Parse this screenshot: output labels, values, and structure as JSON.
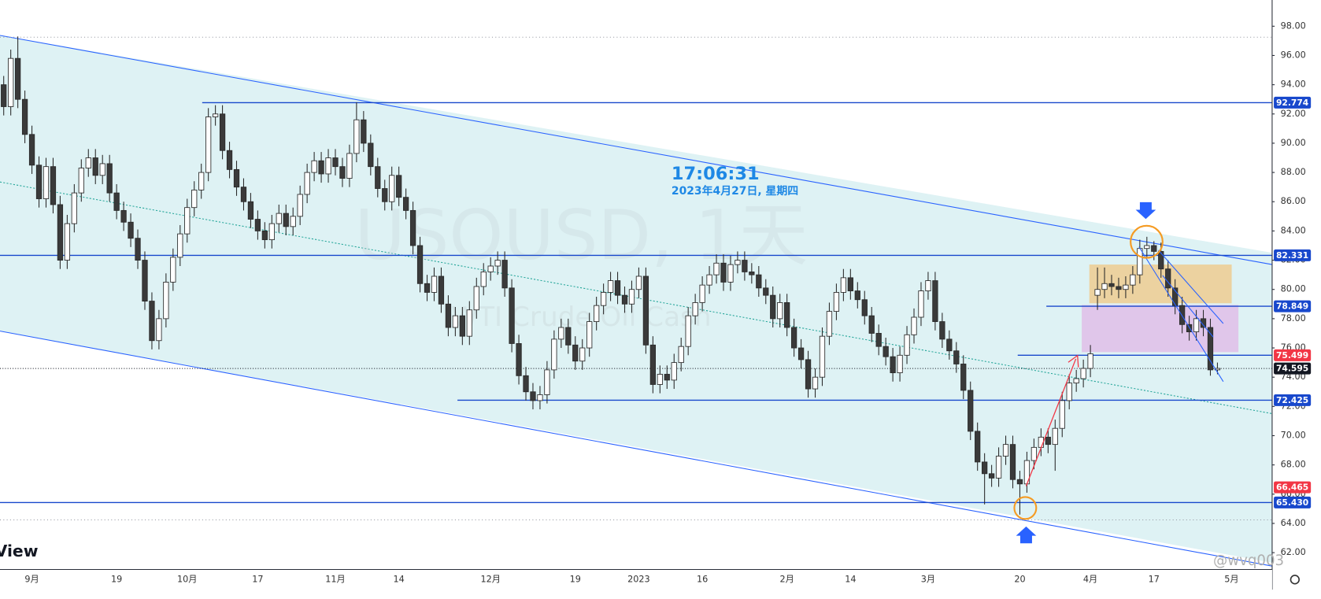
{
  "chart_data": {
    "type": "candlestick",
    "title": "USOUSD, 1天",
    "subtitle": "WTI Crude Oil Cash",
    "clock_time": "17:06:31",
    "clock_date": "2023年4月27日, 星期四",
    "branding": "View",
    "watermark": "@wvq003",
    "up_color": "#ffffff",
    "down_color": "#3a3a3a",
    "outline_color": "#2a2a2a",
    "categories": [
      null,
      null,
      null,
      null,
      "9月",
      null,
      null,
      null,
      null,
      null,
      null,
      null,
      null,
      null,
      null,
      null,
      "19",
      null,
      null,
      null,
      null,
      null,
      null,
      null,
      null,
      null,
      "10月",
      null,
      null,
      null,
      null,
      null,
      null,
      null,
      null,
      null,
      "17",
      null,
      null,
      null,
      null,
      null,
      null,
      null,
      null,
      null,
      null,
      "11月",
      null,
      null,
      null,
      null,
      null,
      null,
      null,
      null,
      "14",
      null,
      null,
      null,
      null,
      null,
      null,
      null,
      null,
      null,
      null,
      null,
      null,
      "12月",
      null,
      null,
      null,
      null,
      null,
      null,
      null,
      null,
      null,
      null,
      null,
      "19",
      null,
      null,
      null,
      null,
      null,
      null,
      null,
      null,
      "2023",
      null,
      null,
      null,
      null,
      null,
      null,
      null,
      null,
      "16",
      null,
      null,
      null,
      null,
      null,
      null,
      null,
      null,
      null,
      null,
      null,
      "2月",
      null,
      null,
      null,
      null,
      null,
      null,
      null,
      null,
      "14",
      null,
      null,
      null,
      null,
      null,
      null,
      null,
      null,
      null,
      null,
      "3月",
      null,
      null,
      null,
      null,
      null,
      null,
      null,
      null,
      null,
      null,
      null,
      null,
      "20",
      null,
      null,
      null,
      null,
      null,
      null,
      null,
      null,
      null,
      "4月",
      null,
      null,
      null,
      null,
      null,
      null,
      null,
      null,
      "17",
      null,
      null,
      null,
      null,
      null,
      null,
      null,
      null,
      null,
      null,
      "5月"
    ],
    "open": [
      94.0,
      92.5,
      95.8,
      93.0,
      90.6,
      88.5,
      86.2,
      88.4,
      85.8,
      82.0,
      84.5,
      86.6,
      88.3,
      89.0,
      87.8,
      88.6,
      86.6,
      85.4,
      84.6,
      83.5,
      82.0,
      79.2,
      76.5,
      78.0,
      80.5,
      82.2,
      83.8,
      85.6,
      86.8,
      88.0,
      91.8,
      92.0,
      89.5,
      88.2,
      87.0,
      86.0,
      84.8,
      84.0,
      83.4,
      84.5,
      85.2,
      84.3,
      85.0,
      86.5,
      88.0,
      88.8,
      87.9,
      89.0,
      88.4,
      87.6,
      89.3,
      91.6,
      90.0,
      88.4,
      86.9,
      86.0,
      87.8,
      86.3,
      85.4,
      83.0,
      80.4,
      79.8,
      80.9,
      79.0,
      77.4,
      78.2,
      76.8,
      78.6,
      80.2,
      81.2,
      81.6,
      82.0,
      80.1,
      76.3,
      74.1,
      73.0,
      72.4,
      72.8,
      74.5,
      76.6,
      77.4,
      76.2,
      75.1,
      76.0,
      77.8,
      78.9,
      79.8,
      80.6,
      79.6,
      79.0,
      80.0,
      80.9,
      76.2,
      73.5,
      74.2,
      73.8,
      75.0,
      76.1,
      78.2,
      79.1,
      80.3,
      81.0,
      81.8,
      80.5,
      81.7,
      82.0,
      81.2,
      81.0,
      80.1,
      79.6,
      78.0,
      79.1,
      77.4,
      76.0,
      75.2,
      73.2,
      74.0,
      76.8,
      78.5,
      79.8,
      80.8,
      79.9,
      79.3,
      78.2,
      77.0,
      76.1,
      75.4,
      74.3,
      75.5,
      76.9,
      78.1,
      79.9,
      80.6,
      77.8,
      76.6,
      75.8,
      74.9,
      73.1,
      70.3,
      68.2,
      67.4,
      67.1,
      68.6,
      69.4,
      67.0,
      66.7,
      68.3,
      69.2,
      69.9,
      69.4,
      70.5,
      72.4,
      73.6,
      73.9,
      74.6,
      79.6,
      80.0,
      80.4,
      80.2,
      80.0,
      80.3,
      81.0,
      82.8,
      83.0,
      82.6,
      81.4,
      80.1,
      78.9,
      77.6,
      77.1,
      78.0,
      77.4,
      74.5,
      null,
      null
    ],
    "high": [
      94.6,
      96.4,
      97.3,
      93.6,
      91.2,
      89.1,
      89.0,
      89.0,
      86.4,
      85.1,
      87.2,
      88.9,
      89.6,
      89.6,
      89.2,
      89.2,
      87.2,
      86.0,
      85.2,
      84.1,
      82.6,
      79.8,
      78.6,
      81.1,
      82.8,
      84.4,
      86.2,
      87.4,
      88.6,
      92.4,
      92.6,
      92.6,
      90.1,
      88.8,
      87.6,
      86.6,
      85.4,
      84.6,
      85.1,
      85.8,
      85.8,
      85.6,
      87.1,
      88.6,
      89.4,
      89.4,
      89.6,
      89.6,
      89.0,
      89.9,
      92.8,
      92.2,
      90.6,
      89.0,
      87.5,
      88.4,
      88.4,
      86.9,
      86.0,
      83.6,
      81.0,
      81.5,
      81.5,
      79.6,
      78.8,
      78.8,
      79.2,
      80.8,
      81.8,
      82.2,
      82.6,
      82.6,
      80.7,
      76.9,
      74.7,
      73.6,
      73.4,
      75.1,
      77.2,
      78.0,
      78.0,
      76.8,
      76.6,
      78.4,
      79.5,
      80.4,
      81.2,
      81.2,
      80.2,
      80.6,
      81.5,
      81.5,
      76.8,
      74.8,
      74.8,
      75.6,
      76.7,
      78.8,
      79.7,
      80.9,
      81.6,
      82.4,
      82.4,
      82.3,
      82.6,
      82.6,
      81.8,
      81.6,
      80.7,
      80.2,
      79.7,
      79.7,
      78.0,
      76.6,
      75.8,
      74.6,
      77.4,
      79.1,
      80.4,
      81.4,
      81.4,
      80.5,
      79.9,
      78.8,
      77.6,
      76.7,
      76.0,
      76.1,
      77.5,
      78.7,
      80.5,
      81.2,
      81.2,
      78.4,
      77.2,
      76.4,
      75.5,
      73.7,
      70.9,
      68.8,
      68.0,
      69.2,
      70.0,
      70.0,
      67.6,
      68.9,
      69.8,
      70.5,
      70.5,
      71.1,
      73.0,
      74.2,
      74.5,
      75.2,
      76.2,
      81.5,
      81.5,
      81.0,
      80.8,
      80.9,
      81.6,
      83.4,
      83.6,
      83.3,
      83.2,
      82.0,
      80.7,
      79.5,
      78.2,
      78.6,
      78.6,
      78.0,
      75.0,
      null,
      null
    ],
    "low": [
      91.9,
      91.9,
      92.4,
      90.0,
      87.9,
      85.6,
      85.6,
      85.2,
      81.4,
      81.4,
      83.9,
      86.0,
      87.7,
      87.2,
      87.2,
      86.0,
      84.8,
      84.0,
      82.9,
      81.4,
      78.6,
      75.9,
      75.9,
      77.4,
      79.9,
      81.6,
      83.2,
      85.0,
      86.2,
      87.4,
      91.2,
      88.9,
      87.6,
      86.4,
      85.4,
      84.2,
      83.4,
      82.8,
      82.8,
      83.9,
      83.7,
      83.7,
      84.4,
      85.9,
      87.4,
      87.3,
      87.3,
      87.8,
      87.0,
      87.0,
      88.7,
      89.4,
      87.8,
      86.3,
      85.4,
      85.4,
      85.7,
      84.8,
      82.4,
      79.8,
      79.2,
      79.2,
      78.4,
      76.8,
      76.8,
      76.2,
      76.2,
      78.0,
      79.6,
      80.6,
      81.0,
      79.5,
      75.7,
      73.5,
      72.4,
      71.8,
      71.8,
      72.2,
      73.9,
      76.0,
      75.6,
      74.5,
      74.5,
      75.4,
      77.2,
      78.3,
      79.2,
      79.0,
      78.4,
      78.4,
      79.4,
      75.6,
      72.9,
      72.9,
      73.2,
      73.2,
      74.4,
      75.5,
      77.6,
      78.5,
      79.7,
      80.4,
      79.9,
      79.9,
      81.1,
      80.6,
      80.4,
      79.5,
      79.0,
      77.4,
      77.4,
      76.8,
      75.4,
      74.6,
      72.6,
      72.6,
      73.4,
      76.2,
      77.9,
      79.2,
      79.3,
      78.7,
      77.6,
      76.4,
      75.5,
      74.8,
      73.7,
      73.7,
      74.9,
      76.3,
      77.5,
      79.3,
      77.2,
      76.0,
      75.2,
      74.3,
      72.5,
      69.7,
      67.6,
      65.3,
      66.5,
      66.5,
      68.0,
      66.4,
      64.6,
      66.1,
      67.7,
      68.6,
      68.8,
      67.6,
      69.9,
      71.8,
      73.0,
      73.3,
      74.0,
      78.6,
      79.4,
      79.6,
      79.4,
      79.4,
      79.7,
      80.4,
      82.2,
      82.0,
      80.8,
      79.5,
      78.3,
      77.0,
      76.5,
      76.5,
      76.8,
      74.1,
      74.2,
      null,
      null
    ],
    "close": [
      92.5,
      95.8,
      93.0,
      90.6,
      88.5,
      86.2,
      88.4,
      85.8,
      82.0,
      84.5,
      86.6,
      88.3,
      89.0,
      87.8,
      88.6,
      86.6,
      85.4,
      84.6,
      83.5,
      82.0,
      79.2,
      76.5,
      78.0,
      80.5,
      82.2,
      83.8,
      85.6,
      86.8,
      88.0,
      91.8,
      92.0,
      89.5,
      88.2,
      87.0,
      86.0,
      84.8,
      84.0,
      83.4,
      84.5,
      85.2,
      84.3,
      85.0,
      86.5,
      88.0,
      88.8,
      87.9,
      89.0,
      88.4,
      87.6,
      89.3,
      91.6,
      90.0,
      88.4,
      86.9,
      86.0,
      87.8,
      86.3,
      85.4,
      83.0,
      80.4,
      79.8,
      80.9,
      79.0,
      77.4,
      78.2,
      76.8,
      78.6,
      80.2,
      81.2,
      81.6,
      82.0,
      80.1,
      76.3,
      74.1,
      73.0,
      72.4,
      72.8,
      74.5,
      76.6,
      77.4,
      76.2,
      75.1,
      76.0,
      77.8,
      78.9,
      79.8,
      80.6,
      79.6,
      79.0,
      80.0,
      80.9,
      76.2,
      73.5,
      74.2,
      73.8,
      75.0,
      76.1,
      78.2,
      79.1,
      80.3,
      81.0,
      81.8,
      80.5,
      81.7,
      82.0,
      81.2,
      81.0,
      80.1,
      79.6,
      78.0,
      79.1,
      77.4,
      76.0,
      75.2,
      73.2,
      74.0,
      76.8,
      78.5,
      79.8,
      80.8,
      79.9,
      79.3,
      78.2,
      77.0,
      76.1,
      75.4,
      74.3,
      75.5,
      76.9,
      78.1,
      79.9,
      80.6,
      77.8,
      76.6,
      75.8,
      74.9,
      73.1,
      70.3,
      68.2,
      67.4,
      67.1,
      68.6,
      69.4,
      67.0,
      66.7,
      68.3,
      69.2,
      69.9,
      69.4,
      70.5,
      72.4,
      73.6,
      73.9,
      74.6,
      75.6,
      80.0,
      80.4,
      80.2,
      80.0,
      80.3,
      81.0,
      82.8,
      83.0,
      82.6,
      81.4,
      80.1,
      78.9,
      77.6,
      77.1,
      78.0,
      77.4,
      74.5,
      74.6,
      null,
      null
    ],
    "ylim": [
      60.85,
      99.79
    ],
    "yticks": [
      {
        "value": 62,
        "label": "62.00"
      },
      {
        "value": 64,
        "label": "64.00"
      },
      {
        "value": 66,
        "label": "66.00"
      },
      {
        "value": 68,
        "label": "68.00"
      },
      {
        "value": 70,
        "label": "70.00"
      },
      {
        "value": 72,
        "label": "72.00"
      },
      {
        "value": 74,
        "label": "74.00"
      },
      {
        "value": 76,
        "label": "76.00"
      },
      {
        "value": 78,
        "label": "78.00"
      },
      {
        "value": 80,
        "label": "80.00"
      },
      {
        "value": 82,
        "label": "82.00"
      },
      {
        "value": 84,
        "label": "84.00"
      },
      {
        "value": 86,
        "label": "86.00"
      },
      {
        "value": 88,
        "label": "88.00"
      },
      {
        "value": 90,
        "label": "90.00"
      },
      {
        "value": 92,
        "label": "92.00"
      },
      {
        "value": 94,
        "label": "94.00"
      },
      {
        "value": 96,
        "label": "96.00"
      },
      {
        "value": 98,
        "label": "98.00"
      }
    ],
    "levels": [
      {
        "value": 92.774,
        "label": "92.774",
        "color": "#1848cc",
        "line": "solid"
      },
      {
        "value": 82.331,
        "label": "82.331",
        "color": "#1848cc",
        "line": "solid"
      },
      {
        "value": 78.849,
        "label": "78.849",
        "color": "#1848cc",
        "line": "solid"
      },
      {
        "value": 75.499,
        "label": "75.499",
        "color": "#f23645",
        "line": "solid"
      },
      {
        "value": 74.595,
        "label": "74.595",
        "color": "#131722",
        "line": "dotted"
      },
      {
        "value": 72.425,
        "label": "72.425",
        "color": "#1848cc",
        "line": "solid"
      },
      {
        "value": 66.465,
        "label": "66.465",
        "color": "#f23645",
        "line": "none"
      },
      {
        "value": 65.43,
        "label": "65.430",
        "color": "#1848cc",
        "line": "solid"
      }
    ],
    "reference_lines": [
      97.25,
      64.24
    ]
  }
}
